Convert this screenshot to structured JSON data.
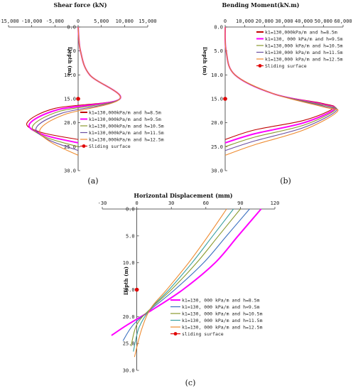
{
  "colors": [
    "#c00000",
    "#ff00ff",
    "#8a9a2e",
    "#6a4fa0",
    "#ee8a2e",
    "#3a6fc0",
    "#3aa0a0"
  ],
  "chart_data": [
    {
      "type": "line",
      "panel": "(a)",
      "title": "Shear force (kN)",
      "ylabel": "Depth (m)",
      "xlim": [
        -15000,
        15000
      ],
      "ylim": [
        0,
        30
      ],
      "xticks": [
        "-15,000",
        "-10,000",
        "-5,000",
        "0",
        "5,000",
        "10,000",
        "15,000"
      ],
      "yticks": [
        "0.0",
        "5.0",
        "10.0",
        "15.0",
        "20.0",
        "25.0",
        "30.0"
      ],
      "legend_position": "bottom-right",
      "series": [
        {
          "name": "k1=130,000kPa/m and h=8.5m",
          "color_index": 0,
          "points": [
            [
              0,
              0
            ],
            [
              500,
              5
            ],
            [
              2500,
              10
            ],
            [
              9000,
              15
            ],
            [
              -5000,
              17
            ],
            [
              -11000,
              20
            ],
            [
              -8000,
              22
            ],
            [
              0,
              23.5
            ]
          ]
        },
        {
          "name": "k1=130,000kPa/m and h=9.5m",
          "color_index": 1,
          "points": [
            [
              0,
              0
            ],
            [
              500,
              5
            ],
            [
              2500,
              10
            ],
            [
              9000,
              15
            ],
            [
              -4500,
              17.3
            ],
            [
              -10500,
              20.3
            ],
            [
              -7500,
              22.5
            ],
            [
              0,
              24.2
            ]
          ]
        },
        {
          "name": "k1=130,000kPa/m and h=10.5m",
          "color_index": 2,
          "points": [
            [
              0,
              0
            ],
            [
              500,
              5
            ],
            [
              2500,
              10
            ],
            [
              9000,
              15
            ],
            [
              -4000,
              17.6
            ],
            [
              -9800,
              20.7
            ],
            [
              -7000,
              23
            ],
            [
              0,
              25
            ]
          ]
        },
        {
          "name": "k1=130,000kPa/m and h=11.5m",
          "color_index": 3,
          "points": [
            [
              0,
              0
            ],
            [
              500,
              5
            ],
            [
              2500,
              10
            ],
            [
              9000,
              15
            ],
            [
              -3500,
              18
            ],
            [
              -9000,
              21
            ],
            [
              -6500,
              23.5
            ],
            [
              0,
              25.8
            ]
          ]
        },
        {
          "name": "k1=130,000kPa/m and h=12.5m",
          "color_index": 4,
          "points": [
            [
              0,
              0
            ],
            [
              500,
              5
            ],
            [
              2500,
              10
            ],
            [
              9000,
              15
            ],
            [
              -3000,
              18.3
            ],
            [
              -8200,
              21.4
            ],
            [
              -6000,
              24
            ],
            [
              0,
              26.8
            ]
          ]
        }
      ],
      "sliding_surface": {
        "name": "Sliding surface",
        "x": 0,
        "y": 15
      }
    },
    {
      "type": "line",
      "panel": "(b)",
      "title": "Bending Moment(kN.m)",
      "ylabel": "Depth (m)",
      "xlim": [
        0,
        60000
      ],
      "ylim": [
        0,
        30
      ],
      "xticks": [
        "0",
        "10,000",
        "20,000",
        "30,000",
        "40,000",
        "50,000",
        "60,000"
      ],
      "yticks": [
        "0.0",
        "5.0",
        "10.0",
        "15.0",
        "20.0",
        "25.0",
        "30.0"
      ],
      "legend_position": "top-right",
      "series": [
        {
          "name": "k1=130,000kPa/m and h=8.5m",
          "color_index": 0,
          "points": [
            [
              0,
              0
            ],
            [
              500,
              5
            ],
            [
              5000,
              10
            ],
            [
              25000,
              14
            ],
            [
              50000,
              16
            ],
            [
              55000,
              17
            ],
            [
              40000,
              19.5
            ],
            [
              15000,
              21.5
            ],
            [
              0,
              23.5
            ]
          ]
        },
        {
          "name": "k1=130, 000 kPa/m and h=9.5m",
          "color_index": 1,
          "points": [
            [
              0,
              0
            ],
            [
              500,
              5
            ],
            [
              5000,
              10
            ],
            [
              25000,
              14
            ],
            [
              50000,
              16.2
            ],
            [
              55500,
              17.2
            ],
            [
              40000,
              20
            ],
            [
              15000,
              22.3
            ],
            [
              0,
              24.2
            ]
          ]
        },
        {
          "name": "k1=130,000 kPa/m and h=10.5m",
          "color_index": 2,
          "points": [
            [
              0,
              0
            ],
            [
              500,
              5
            ],
            [
              5000,
              10
            ],
            [
              25000,
              14
            ],
            [
              50000,
              16.3
            ],
            [
              56000,
              17.3
            ],
            [
              40000,
              20.5
            ],
            [
              15000,
              23
            ],
            [
              0,
              25
            ]
          ]
        },
        {
          "name": "k1=130,000 kPa/m and h=11.5m",
          "color_index": 3,
          "points": [
            [
              0,
              0
            ],
            [
              500,
              5
            ],
            [
              5000,
              10
            ],
            [
              25000,
              14
            ],
            [
              50000,
              16.5
            ],
            [
              56500,
              17.5
            ],
            [
              40000,
              21
            ],
            [
              15000,
              23.8
            ],
            [
              0,
              25.8
            ]
          ]
        },
        {
          "name": "k1=130,000 kPa/m and h=12.5m",
          "color_index": 4,
          "points": [
            [
              0,
              0
            ],
            [
              500,
              5
            ],
            [
              5000,
              10
            ],
            [
              25000,
              14
            ],
            [
              50000,
              16.7
            ],
            [
              57000,
              17.7
            ],
            [
              40000,
              21.5
            ],
            [
              15000,
              24.6
            ],
            [
              0,
              26.8
            ]
          ]
        }
      ],
      "sliding_surface": {
        "name": "Sliding surface",
        "x": 0,
        "y": 15
      }
    },
    {
      "type": "line",
      "panel": "(c)",
      "title": "Horizontal Displacement (mm)",
      "ylabel": "Depth (m)",
      "xlim": [
        -30,
        120
      ],
      "ylim": [
        0,
        30
      ],
      "xticks": [
        "-30",
        "0",
        "30",
        "60",
        "90",
        "120"
      ],
      "yticks": [
        "0.0",
        "5.0",
        "10.0",
        "15.0",
        "20.0",
        "25.0",
        "30.0"
      ],
      "legend_position": "bottom-right",
      "series": [
        {
          "name": "k1=130, 000 kPa/m and h=8.5m",
          "color_index": 1,
          "points": [
            [
              108,
              0
            ],
            [
              88,
              5
            ],
            [
              68,
              10
            ],
            [
              40,
              15
            ],
            [
              13,
              18.8
            ],
            [
              -8,
              21.5
            ],
            [
              -22,
              23.5
            ]
          ]
        },
        {
          "name": "k1=130, 000 kPa/m and h=9.5m",
          "color_index": 5,
          "points": [
            [
              98,
              0
            ],
            [
              78,
              5
            ],
            [
              58,
              10
            ],
            [
              33,
              15
            ],
            [
              13,
              18.5
            ],
            [
              -3,
              21.5
            ],
            [
              -12,
              24.5
            ]
          ]
        },
        {
          "name": "k1=130, 000 kPa/m and h=10.5m",
          "color_index": 2,
          "points": [
            [
              90,
              0
            ],
            [
              71,
              5
            ],
            [
              52,
              10
            ],
            [
              30,
              15
            ],
            [
              12,
              18.5
            ],
            [
              0,
              21.5
            ],
            [
              -5,
              25.5
            ]
          ]
        },
        {
          "name": "k1=130, 000 kPa/m and h=11.5m",
          "color_index": 6,
          "points": [
            [
              84,
              0
            ],
            [
              66,
              5
            ],
            [
              48,
              10
            ],
            [
              28,
              15
            ],
            [
              12,
              18.5
            ],
            [
              2,
              22
            ],
            [
              -3,
              26.5
            ]
          ]
        },
        {
          "name": "k1=130, 000 kPa/m and h=12.5m",
          "color_index": 4,
          "points": [
            [
              78,
              0
            ],
            [
              62,
              5
            ],
            [
              45,
              10
            ],
            [
              26,
              15
            ],
            [
              12,
              18.5
            ],
            [
              4,
              22.5
            ],
            [
              -2,
              27.5
            ]
          ]
        }
      ],
      "sliding_surface": {
        "name": "sliding surface",
        "x": 0,
        "y": 15
      }
    }
  ]
}
